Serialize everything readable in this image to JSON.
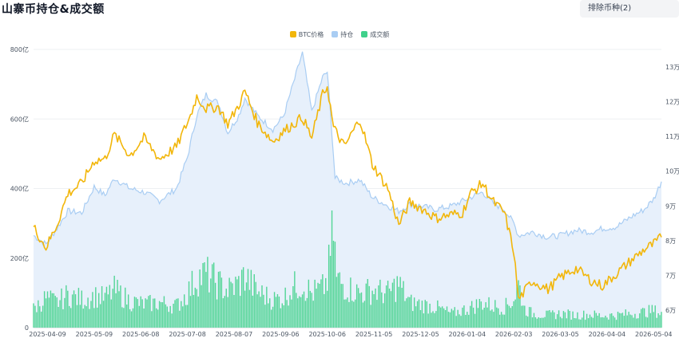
{
  "header": {
    "title": "山寨币持仓&成交额",
    "exclude_button": "排除币种(2)"
  },
  "legend": [
    {
      "label": "BTC价格",
      "color": "#f2b60a"
    },
    {
      "label": "持仓",
      "color": "#a9cdf3"
    },
    {
      "label": "成交额",
      "color": "#3fd18b"
    }
  ],
  "chart_data": {
    "type": "line",
    "x_start": "2025-03-31",
    "x_end": "2026-05-09",
    "x_ticks": [
      "2025-04-09",
      "2025-05-09",
      "2025-06-08",
      "2025-07-08",
      "2025-08-07",
      "2025-09-06",
      "2025-10-06",
      "2025-11-05",
      "2025-12-05",
      "2026-01-04",
      "2026-02-03",
      "2026-03-05",
      "2026-04-04",
      "2026-05-04"
    ],
    "left_axis": {
      "ticks": [
        "0",
        "200亿",
        "400亿",
        "600亿",
        "800亿"
      ],
      "min": 0,
      "max": 800,
      "unit": "亿"
    },
    "right_axis": {
      "ticks": [
        "6万",
        "7万",
        "8万",
        "9万",
        "10万",
        "11万",
        "12万",
        "13万"
      ],
      "min": 55000,
      "max": 135000
    },
    "series": [
      {
        "name": "BTC价格",
        "axis": "right",
        "points": [
          [
            "2025-03-31",
            84000
          ],
          [
            "2025-04-08",
            78000
          ],
          [
            "2025-04-15",
            84500
          ],
          [
            "2025-04-22",
            93500
          ],
          [
            "2025-05-01",
            96500
          ],
          [
            "2025-05-09",
            103000
          ],
          [
            "2025-05-16",
            103500
          ],
          [
            "2025-05-22",
            110500
          ],
          [
            "2025-06-01",
            104500
          ],
          [
            "2025-06-10",
            109500
          ],
          [
            "2025-06-20",
            103500
          ],
          [
            "2025-07-01",
            107000
          ],
          [
            "2025-07-10",
            116000
          ],
          [
            "2025-07-14",
            121500
          ],
          [
            "2025-07-20",
            118000
          ],
          [
            "2025-07-28",
            118500
          ],
          [
            "2025-08-03",
            113500
          ],
          [
            "2025-08-10",
            119000
          ],
          [
            "2025-08-14",
            123000
          ],
          [
            "2025-08-22",
            114000
          ],
          [
            "2025-09-01",
            108500
          ],
          [
            "2025-09-08",
            111500
          ],
          [
            "2025-09-20",
            115500
          ],
          [
            "2025-09-26",
            109500
          ],
          [
            "2025-10-03",
            122000
          ],
          [
            "2025-10-06",
            124500
          ],
          [
            "2025-10-10",
            112500
          ],
          [
            "2025-10-17",
            107000
          ],
          [
            "2025-10-27",
            115000
          ],
          [
            "2025-11-04",
            102000
          ],
          [
            "2025-11-14",
            95000
          ],
          [
            "2025-11-21",
            84500
          ],
          [
            "2025-11-28",
            91000
          ],
          [
            "2025-12-05",
            89500
          ],
          [
            "2025-12-15",
            86500
          ],
          [
            "2025-12-25",
            87500
          ],
          [
            "2026-01-01",
            88000
          ],
          [
            "2026-01-06",
            93500
          ],
          [
            "2026-01-14",
            96500
          ],
          [
            "2026-01-20",
            91500
          ],
          [
            "2026-01-28",
            88000
          ],
          [
            "2026-02-03",
            77000
          ],
          [
            "2026-02-06",
            63000
          ],
          [
            "2026-02-15",
            68500
          ],
          [
            "2026-02-25",
            66000
          ],
          [
            "2026-03-05",
            69500
          ],
          [
            "2026-03-15",
            72000
          ],
          [
            "2026-03-25",
            68500
          ],
          [
            "2026-04-01",
            67000
          ],
          [
            "2026-04-10",
            70500
          ],
          [
            "2026-04-20",
            74500
          ],
          [
            "2026-04-28",
            77500
          ],
          [
            "2026-05-04",
            79000
          ],
          [
            "2026-05-09",
            81000
          ]
        ]
      },
      {
        "name": "持仓",
        "axis": "left",
        "points": [
          [
            "2025-03-31",
            265
          ],
          [
            "2025-04-08",
            240
          ],
          [
            "2025-04-15",
            285
          ],
          [
            "2025-04-22",
            335
          ],
          [
            "2025-05-01",
            330
          ],
          [
            "2025-05-09",
            405
          ],
          [
            "2025-05-16",
            380
          ],
          [
            "2025-05-22",
            430
          ],
          [
            "2025-06-01",
            400
          ],
          [
            "2025-06-10",
            390
          ],
          [
            "2025-06-20",
            365
          ],
          [
            "2025-07-01",
            400
          ],
          [
            "2025-07-08",
            490
          ],
          [
            "2025-07-14",
            610
          ],
          [
            "2025-07-20",
            670
          ],
          [
            "2025-07-28",
            645
          ],
          [
            "2025-08-03",
            560
          ],
          [
            "2025-08-10",
            610
          ],
          [
            "2025-08-14",
            660
          ],
          [
            "2025-08-22",
            610
          ],
          [
            "2025-09-01",
            570
          ],
          [
            "2025-09-08",
            610
          ],
          [
            "2025-09-14",
            700
          ],
          [
            "2025-09-20",
            790
          ],
          [
            "2025-09-26",
            620
          ],
          [
            "2025-10-03",
            720
          ],
          [
            "2025-10-06",
            735
          ],
          [
            "2025-10-09",
            560
          ],
          [
            "2025-10-11",
            430
          ],
          [
            "2025-10-18",
            415
          ],
          [
            "2025-10-27",
            425
          ],
          [
            "2025-11-04",
            375
          ],
          [
            "2025-11-14",
            350
          ],
          [
            "2025-11-21",
            335
          ],
          [
            "2025-11-28",
            355
          ],
          [
            "2025-12-05",
            350
          ],
          [
            "2025-12-15",
            340
          ],
          [
            "2025-12-25",
            350
          ],
          [
            "2026-01-04",
            370
          ],
          [
            "2026-01-14",
            390
          ],
          [
            "2026-01-20",
            360
          ],
          [
            "2026-01-28",
            340
          ],
          [
            "2026-02-03",
            300
          ],
          [
            "2026-02-06",
            265
          ],
          [
            "2026-02-15",
            275
          ],
          [
            "2026-02-25",
            260
          ],
          [
            "2026-03-05",
            265
          ],
          [
            "2026-03-15",
            280
          ],
          [
            "2026-03-25",
            275
          ],
          [
            "2026-04-01",
            285
          ],
          [
            "2026-04-10",
            290
          ],
          [
            "2026-04-20",
            320
          ],
          [
            "2026-04-28",
            340
          ],
          [
            "2026-05-04",
            370
          ],
          [
            "2026-05-09",
            420
          ]
        ]
      },
      {
        "name": "成交额",
        "axis": "left",
        "type": "bar",
        "points": [
          [
            "2025-03-31",
            60
          ],
          [
            "2025-04-08",
            95
          ],
          [
            "2025-04-15",
            80
          ],
          [
            "2025-04-22",
            105
          ],
          [
            "2025-05-01",
            90
          ],
          [
            "2025-05-09",
            100
          ],
          [
            "2025-05-16",
            95
          ],
          [
            "2025-05-22",
            120
          ],
          [
            "2025-06-01",
            85
          ],
          [
            "2025-06-10",
            75
          ],
          [
            "2025-06-20",
            80
          ],
          [
            "2025-07-01",
            70
          ],
          [
            "2025-07-08",
            110
          ],
          [
            "2025-07-14",
            160
          ],
          [
            "2025-07-20",
            170
          ],
          [
            "2025-07-28",
            140
          ],
          [
            "2025-08-03",
            120
          ],
          [
            "2025-08-10",
            140
          ],
          [
            "2025-08-14",
            165
          ],
          [
            "2025-08-22",
            115
          ],
          [
            "2025-09-01",
            90
          ],
          [
            "2025-09-08",
            95
          ],
          [
            "2025-09-14",
            130
          ],
          [
            "2025-09-20",
            140
          ],
          [
            "2025-09-26",
            110
          ],
          [
            "2025-10-03",
            125
          ],
          [
            "2025-10-06",
            150
          ],
          [
            "2025-10-10",
            320
          ],
          [
            "2025-10-12",
            155
          ],
          [
            "2025-10-18",
            130
          ],
          [
            "2025-10-27",
            110
          ],
          [
            "2025-11-04",
            120
          ],
          [
            "2025-11-14",
            110
          ],
          [
            "2025-11-21",
            140
          ],
          [
            "2025-11-28",
            80
          ],
          [
            "2025-12-05",
            75
          ],
          [
            "2025-12-15",
            65
          ],
          [
            "2025-12-25",
            45
          ],
          [
            "2026-01-04",
            60
          ],
          [
            "2026-01-14",
            80
          ],
          [
            "2026-01-20",
            70
          ],
          [
            "2026-01-28",
            65
          ],
          [
            "2026-02-03",
            90
          ],
          [
            "2026-02-06",
            140
          ],
          [
            "2026-02-10",
            60
          ],
          [
            "2026-02-15",
            45
          ],
          [
            "2026-02-25",
            40
          ],
          [
            "2026-03-05",
            45
          ],
          [
            "2026-03-15",
            40
          ],
          [
            "2026-03-25",
            42
          ],
          [
            "2026-04-01",
            38
          ],
          [
            "2026-04-10",
            40
          ],
          [
            "2026-04-20",
            45
          ],
          [
            "2026-04-28",
            50
          ],
          [
            "2026-05-04",
            55
          ],
          [
            "2026-05-09",
            45
          ]
        ]
      }
    ]
  }
}
